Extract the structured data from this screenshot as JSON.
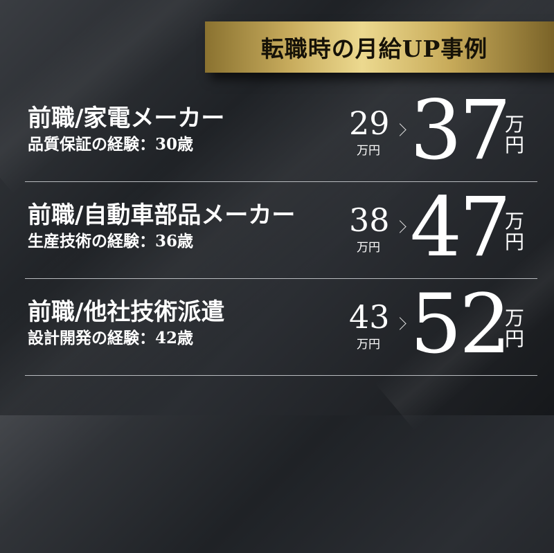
{
  "banner": {
    "title": "転職時の月給UP事例",
    "color": "#c9ad5e"
  },
  "cases": [
    {
      "title": "前職/家電メーカー",
      "subtitle": "品質保証の経験：30歳",
      "before": "29",
      "before_unit": "万円",
      "after": "37",
      "unit_top": "万",
      "unit_bottom": "円"
    },
    {
      "title": "前職/自動車部品メーカー",
      "subtitle": "生産技術の経験：36歳",
      "before": "38",
      "before_unit": "万円",
      "after": "47",
      "unit_top": "万",
      "unit_bottom": "円"
    },
    {
      "title": "前職/他社技術派遣",
      "subtitle": "設計開発の経験：42歳",
      "before": "43",
      "before_unit": "万円",
      "after": "52",
      "unit_top": "万",
      "unit_bottom": "円"
    }
  ],
  "icons": {
    "arrow": "chevron-right-icon"
  }
}
